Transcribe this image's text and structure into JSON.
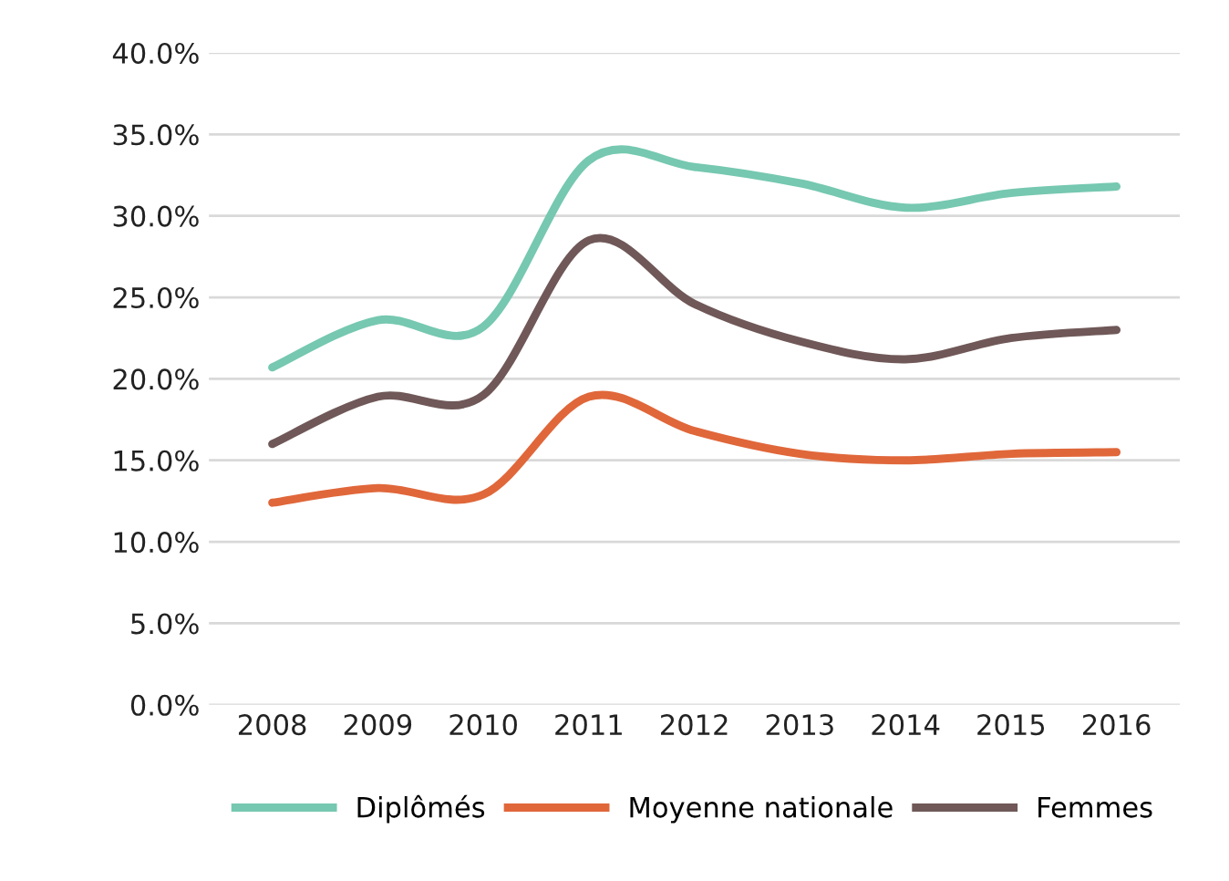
{
  "chart_data": {
    "type": "line",
    "categories": [
      "2008",
      "2009",
      "2010",
      "2011",
      "2012",
      "2013",
      "2014",
      "2015",
      "2016"
    ],
    "series": [
      {
        "name": "Diplômés",
        "color": "#76c8b0",
        "values": [
          20.7,
          23.6,
          23.2,
          33.4,
          33.0,
          32.0,
          30.5,
          31.4,
          31.8
        ]
      },
      {
        "name": "Moyenne nationale",
        "color": "#e0673a",
        "values": [
          12.4,
          13.3,
          12.9,
          18.9,
          16.8,
          15.4,
          15.0,
          15.4,
          15.5
        ]
      },
      {
        "name": "Femmes",
        "color": "#705858",
        "values": [
          16.0,
          18.9,
          19.0,
          28.5,
          24.6,
          22.3,
          21.2,
          22.5,
          23.0
        ]
      }
    ],
    "ylim": [
      0,
      40
    ],
    "yticks": [
      {
        "value": 0,
        "label": "0.0%"
      },
      {
        "value": 5,
        "label": "5.0%"
      },
      {
        "value": 10,
        "label": "10.0%"
      },
      {
        "value": 15,
        "label": "15.0%"
      },
      {
        "value": 20,
        "label": "20.0%"
      },
      {
        "value": 25,
        "label": "25.0%"
      },
      {
        "value": 30,
        "label": "30.0%"
      },
      {
        "value": 35,
        "label": "35.0%"
      },
      {
        "value": 40,
        "label": "40.0%"
      }
    ],
    "grid": "y",
    "legend": "bottom",
    "marker": "none",
    "line_style": "solid"
  }
}
